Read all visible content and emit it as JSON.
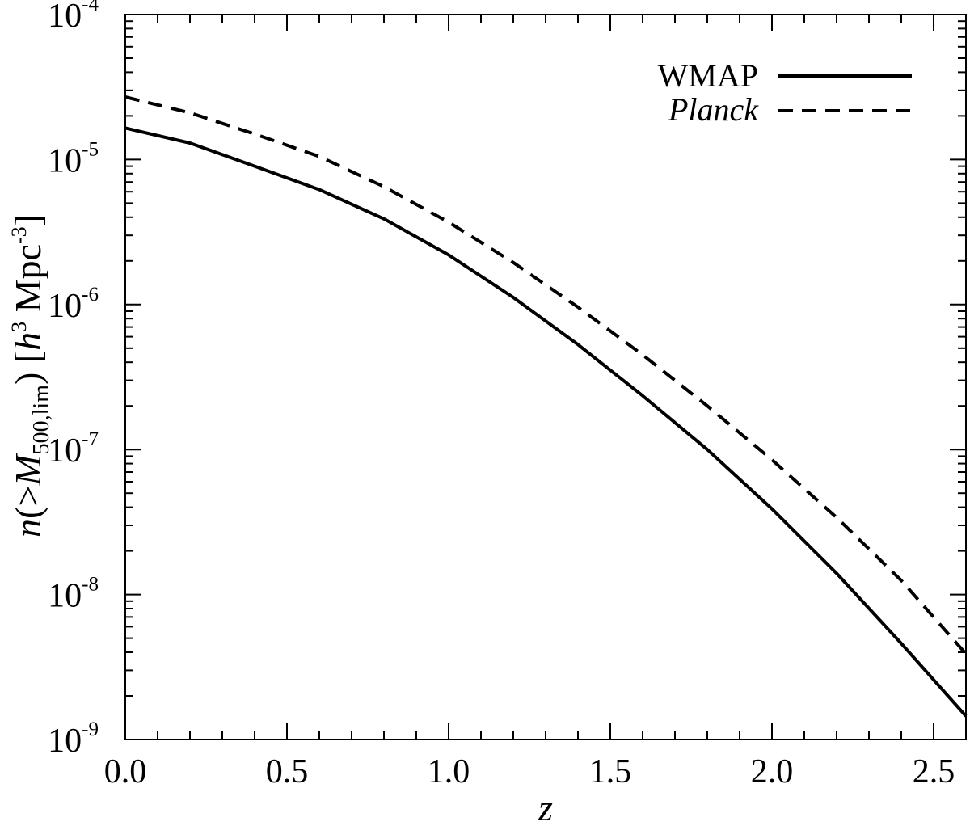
{
  "chart_data": {
    "type": "line",
    "xlabel": "z",
    "ylabel": {
      "prefix": "n",
      "open": "(>",
      "var": "M",
      "sub": "500,lim",
      "close": ") [",
      "unit_h": "h",
      "unit_h_exp": "3",
      "unit_mpc": " Mpc",
      "unit_mpc_exp": "-3",
      "end": "]"
    },
    "xlim": [
      0.0,
      2.6
    ],
    "ylim": [
      1e-09,
      0.0001
    ],
    "yscale": "log",
    "grid": false,
    "legend_position": "top-right",
    "x_ticks": [
      {
        "value": 0.0,
        "label": "0.0"
      },
      {
        "value": 0.5,
        "label": "0.5"
      },
      {
        "value": 1.0,
        "label": "1.0"
      },
      {
        "value": 1.5,
        "label": "1.5"
      },
      {
        "value": 2.0,
        "label": "2.0"
      },
      {
        "value": 2.5,
        "label": "2.5"
      }
    ],
    "y_ticks": [
      {
        "value": 0.0001,
        "base": "10",
        "exp": "-4"
      },
      {
        "value": 1e-05,
        "base": "10",
        "exp": "-5"
      },
      {
        "value": 1e-06,
        "base": "10",
        "exp": "-6"
      },
      {
        "value": 1e-07,
        "base": "10",
        "exp": "-7"
      },
      {
        "value": 1e-08,
        "base": "10",
        "exp": "-8"
      },
      {
        "value": 1e-09,
        "base": "10",
        "exp": "-9"
      }
    ],
    "x": [
      0.0,
      0.2,
      0.4,
      0.6,
      0.8,
      1.0,
      1.2,
      1.4,
      1.6,
      1.8,
      2.0,
      2.2,
      2.4,
      2.6
    ],
    "series": [
      {
        "name": "WMAP",
        "style": "solid",
        "color": "#000000",
        "values": [
          1.65e-05,
          1.3e-05,
          9e-06,
          6.2e-06,
          3.9e-06,
          2.2e-06,
          1.12e-06,
          5.3e-07,
          2.35e-07,
          1e-07,
          3.9e-08,
          1.4e-08,
          4.6e-09,
          1.45e-09
        ]
      },
      {
        "name": "Planck",
        "style": "dashed",
        "italic": true,
        "color": "#000000",
        "values": [
          2.7e-05,
          2.1e-05,
          1.5e-05,
          1.05e-05,
          6.5e-06,
          3.7e-06,
          1.95e-06,
          9.6e-07,
          4.5e-07,
          2e-07,
          8.5e-08,
          3.4e-08,
          1.25e-08,
          3.9e-09
        ]
      }
    ]
  }
}
